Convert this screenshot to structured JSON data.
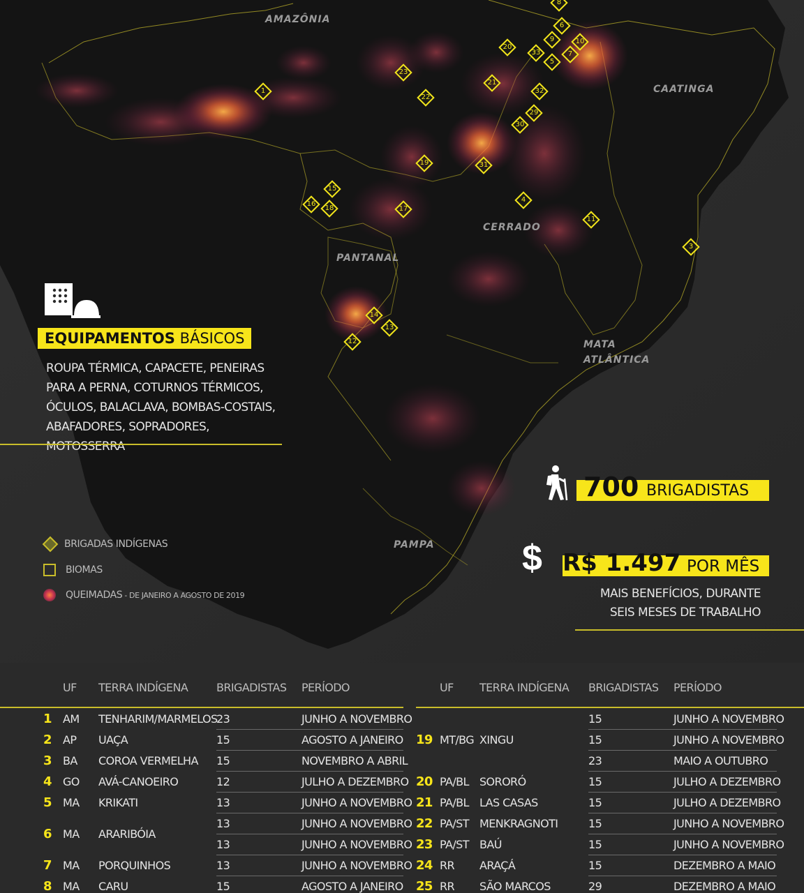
{
  "biomes": {
    "amazonia": "AMAZÔNIA",
    "caatinga": "CAATINGA",
    "cerrado": "CERRADO",
    "pantanal": "PANTANAL",
    "mata_atlantica_1": "MATA",
    "mata_atlantica_2": "ATLÂNTICA",
    "pampa": "PAMPA"
  },
  "markers": [
    "1",
    "2",
    "3",
    "4",
    "5",
    "6",
    "7",
    "8",
    "9",
    "10",
    "11",
    "12",
    "13",
    "14",
    "15",
    "16",
    "17",
    "18",
    "19",
    "20",
    "21",
    "22",
    "23",
    "29",
    "30",
    "31",
    "32",
    "33"
  ],
  "equipamentos": {
    "title_bold": "EQUIPAMENTOS",
    "title_rest": " BÁSICOS",
    "lines": [
      "ROUPA TÉRMICA, CAPACETE, PENEIRAS",
      "PARA A PERNA, COTURNOS TÉRMICOS,",
      "ÓCULOS, BALACLAVA, BOMBAS-COSTAIS,",
      "ABAFADORES, SOPRADORES, MOTOSSERRA"
    ],
    "icon": "equipment-icon"
  },
  "legend": {
    "brigadas": "BRIGADAS INDÍGENAS",
    "biomas": "BIOMAS",
    "queimadas": "QUEIMADAS",
    "queimadas_sub": " - DE JANEIRO A AGOSTO DE 2019"
  },
  "stats": {
    "brigadistas_number": "700",
    "brigadistas_label": "BRIGADISTAS",
    "salary_value": "R$ 1.497",
    "salary_label": "POR MÊS",
    "note_1": "MAIS BENEFÍCIOS, DURANTE",
    "note_2": "SEIS MESES DE TRABALHO",
    "hiker_icon": "hiker-icon",
    "dollar_symbol": "$"
  },
  "table_left": {
    "headers": [
      "UF",
      "TERRA INDÍGENA",
      "BRIGADISTAS",
      "PERÍODO"
    ],
    "rows": [
      {
        "n": "1",
        "uf": "AM",
        "ti": "TENHARIM/MARMELOS",
        "b": "23",
        "p": "JUNHO A NOVEMBRO"
      },
      {
        "n": "2",
        "uf": "AP",
        "ti": "UAÇA",
        "b": "15",
        "p": "AGOSTO A JANEIRO"
      },
      {
        "n": "3",
        "uf": "BA",
        "ti": "COROA VERMELHA",
        "b": "15",
        "p": "NOVEMBRO A ABRIL"
      },
      {
        "n": "4",
        "uf": "GO",
        "ti": "AVÁ-CANOEIRO",
        "b": "12",
        "p": "JULHO A DEZEMBRO"
      },
      {
        "n": "5",
        "uf": "MA",
        "ti": "KRIKATI",
        "b": "13",
        "p": "JUNHO A NOVEMBRO"
      },
      {
        "n": "6",
        "uf": "MA",
        "ti": "ARARIBÓIA",
        "b": "13",
        "p": "JUNHO A NOVEMBRO",
        "b2": "13",
        "p2": "JUNHO A NOVEMBRO"
      },
      {
        "n": "7",
        "uf": "MA",
        "ti": "PORQUINHOS",
        "b": "13",
        "p": "JUNHO A NOVEMBRO"
      },
      {
        "n": "8",
        "uf": "MA",
        "ti": "CARU",
        "b": "15",
        "p": "AGOSTO A JANEIRO"
      }
    ]
  },
  "table_right": {
    "headers": [
      "UF",
      "TERRA INDÍGENA",
      "BRIGADISTAS",
      "PERÍODO"
    ],
    "rows": [
      {
        "n": "19",
        "uf": "MT/BG",
        "ti": "XINGU",
        "b": "15",
        "p": "JUNHO A NOVEMBRO",
        "b0": "15",
        "p0": "JUNHO A NOVEMBRO",
        "b2": "23",
        "p2": "MAIO A OUTUBRO"
      },
      {
        "n": "20",
        "uf": "PA/BL",
        "ti": "SORORÓ",
        "b": "15",
        "p": "JULHO A DEZEMBRO"
      },
      {
        "n": "21",
        "uf": "PA/BL",
        "ti": "LAS CASAS",
        "b": "15",
        "p": "JULHO A DEZEMBRO"
      },
      {
        "n": "22",
        "uf": "PA/ST",
        "ti": "MENKRAGNOTI",
        "b": "15",
        "p": "JUNHO A NOVEMBRO"
      },
      {
        "n": "23",
        "uf": "PA/ST",
        "ti": "BAÚ",
        "b": "15",
        "p": "JUNHO A NOVEMBRO"
      },
      {
        "n": "24",
        "uf": "RR",
        "ti": "ARAÇÁ",
        "b": "15",
        "p": "DEZEMBRO A MAIO"
      },
      {
        "n": "25",
        "uf": "RR",
        "ti": "SÃO MARCOS",
        "b": "29",
        "p": "DEZEMBRO A MAIO"
      }
    ]
  },
  "colors": {
    "accent": "#f7e51a",
    "background": "#2a2a2a",
    "land": "#141414",
    "fire": "#ff7a2a"
  }
}
